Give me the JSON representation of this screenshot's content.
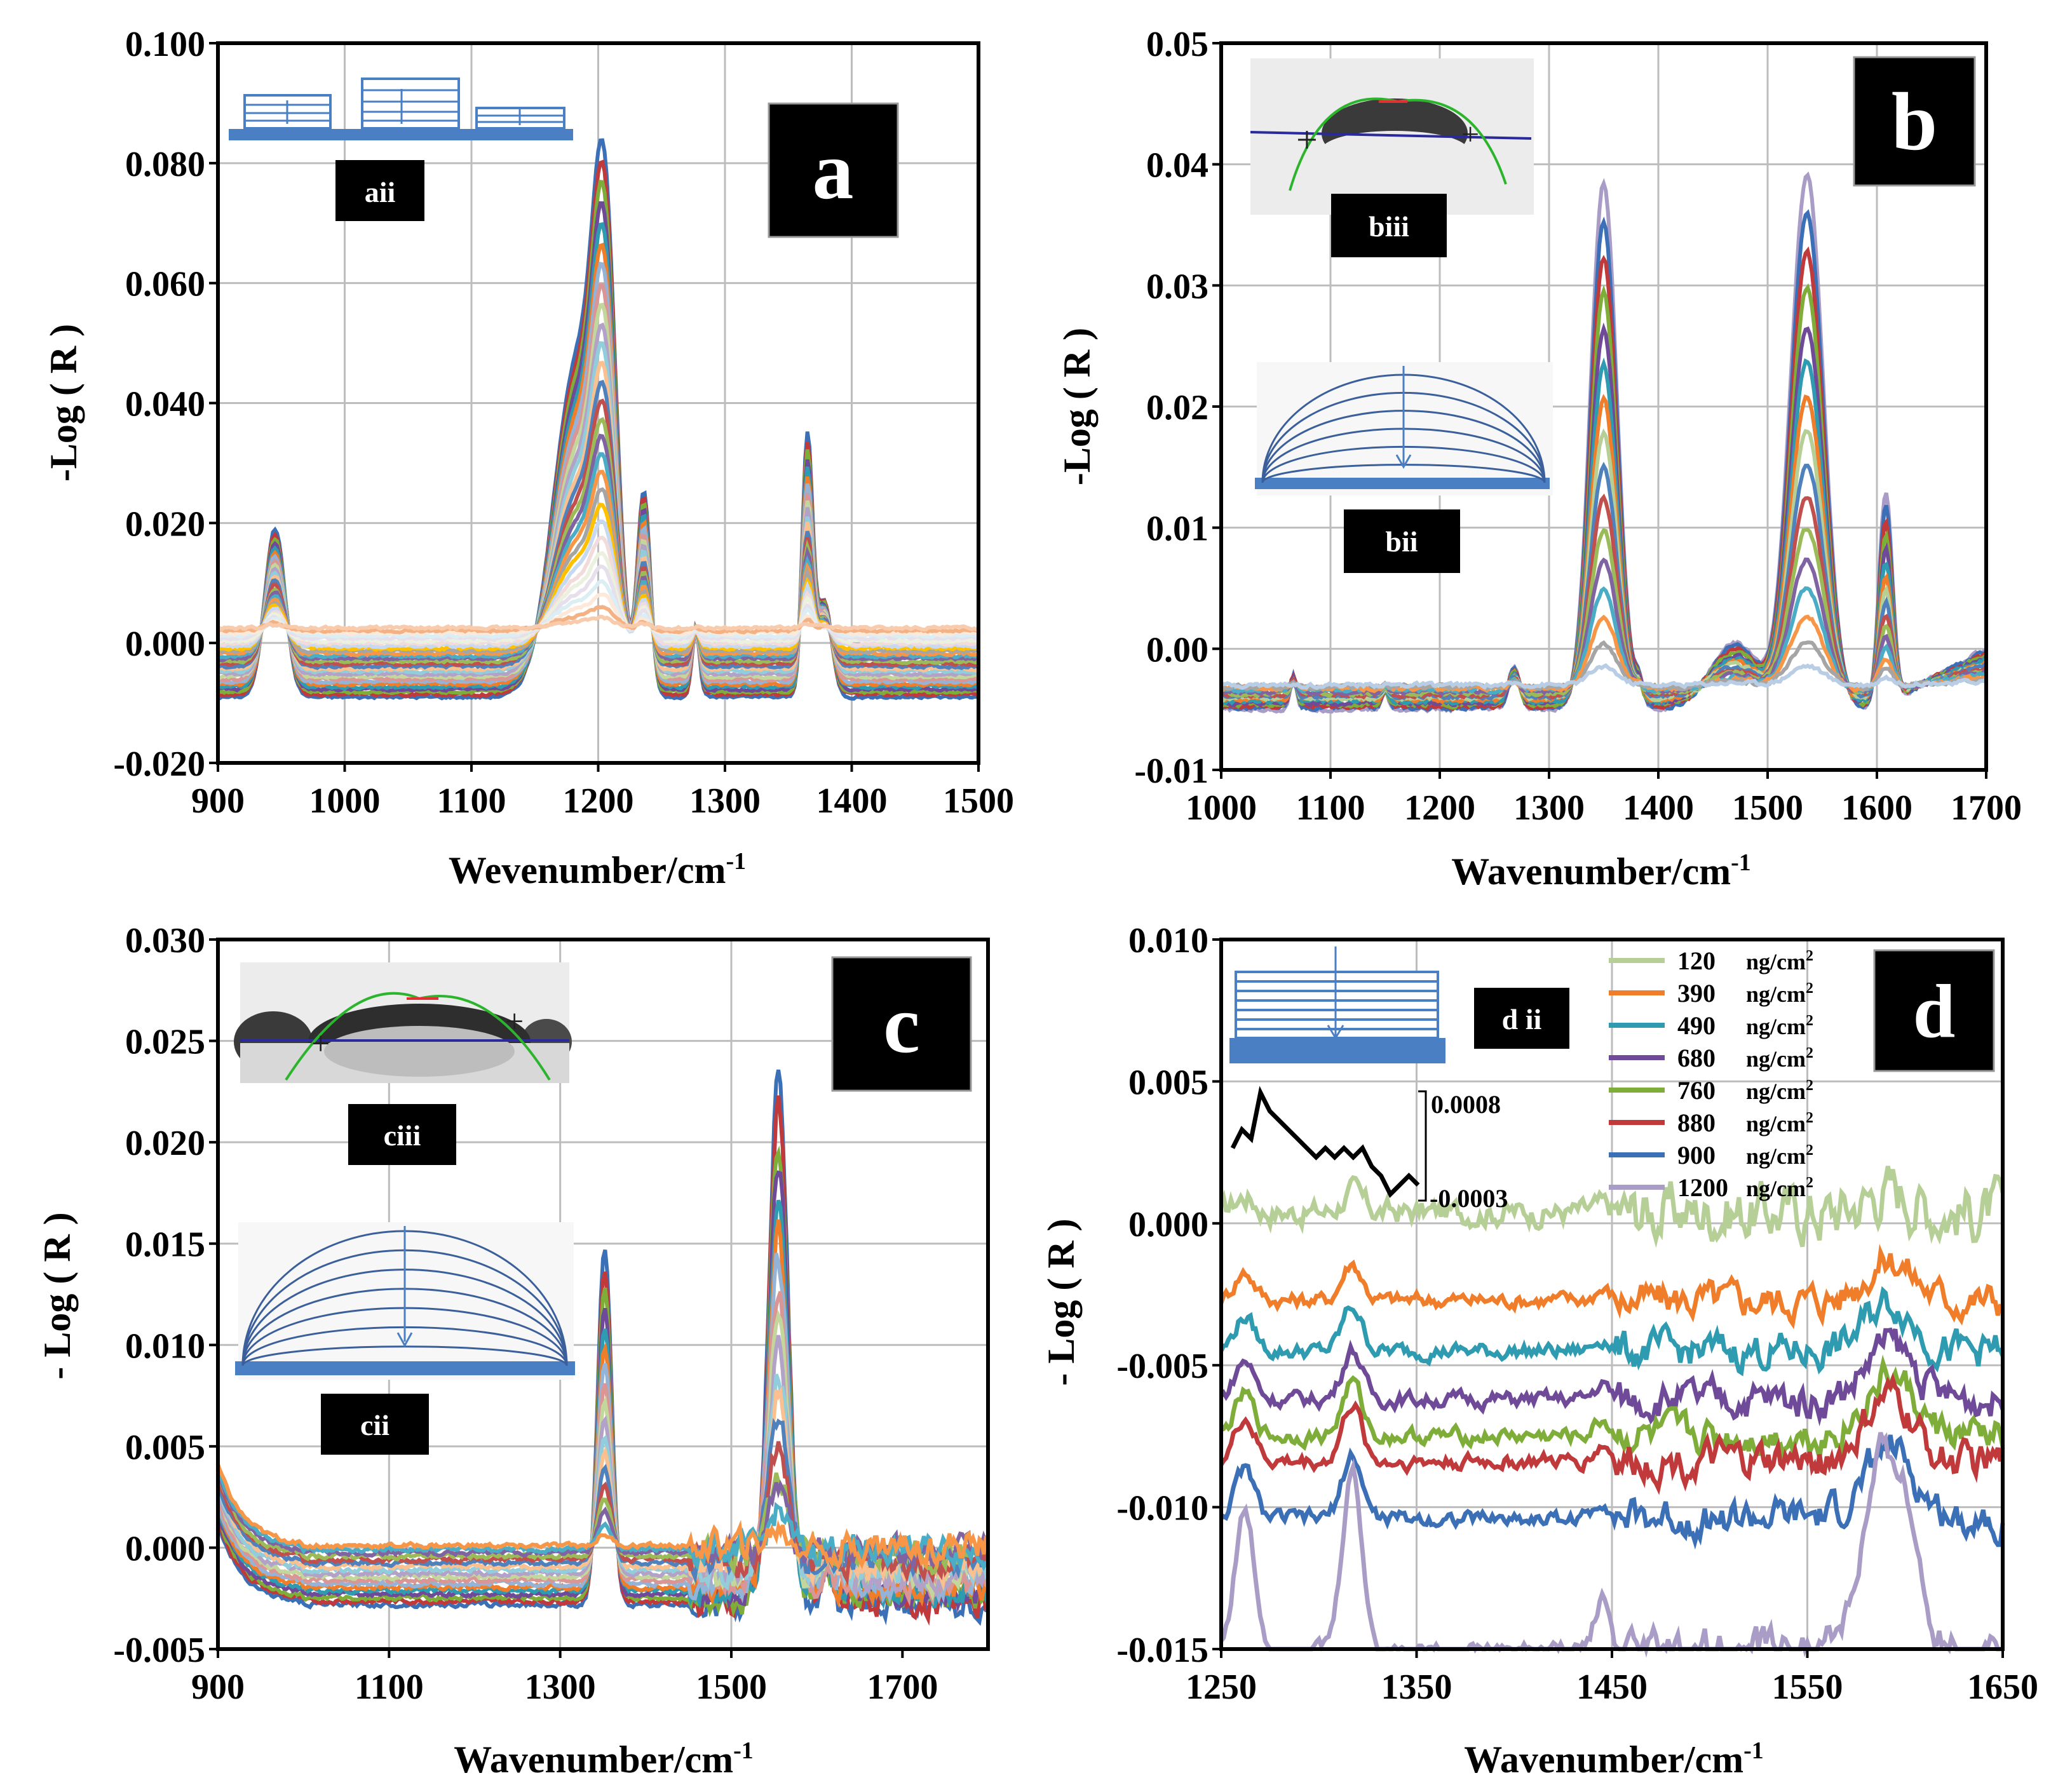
{
  "colors": {
    "c120": "#b5cf96",
    "c390": "#ef7d29",
    "c490": "#2f9bb0",
    "c680": "#6e4a98",
    "c760": "#7fad3a",
    "c880": "#c0393b",
    "c900": "#3b6fb6",
    "c1200": "#a99cc6",
    "frame": "#000000",
    "grid": "#bdbdbd",
    "schematic": "#4a7fc4",
    "label_bg": "#000000"
  },
  "chart_data": [
    {
      "id": "a",
      "type": "line",
      "panel_label": "a",
      "inset_labels": [
        "aii"
      ],
      "xlabel": "Wevenumber/cm",
      "xlabel_sup": "-1",
      "ylabel": "-Log ( R )",
      "xlim": [
        900,
        1500
      ],
      "ylim": [
        -0.02,
        0.1
      ],
      "xticks": [
        900,
        1000,
        1100,
        1200,
        1300,
        1400,
        1500
      ],
      "xtick_labels": [
        "900",
        "1000",
        "1100",
        "1200",
        "1300",
        "1400",
        "1500"
      ],
      "yticks": [
        -0.02,
        0.0,
        0.02,
        0.04,
        0.06,
        0.08,
        0.1
      ],
      "ytick_labels": [
        "-0.020",
        "0.000",
        "0.020",
        "0.040",
        "0.060",
        "0.080",
        "0.100"
      ],
      "series_count": 28,
      "peaks": [
        {
          "x": 945,
          "width": 8,
          "max": 0.028
        },
        {
          "x": 1183,
          "width": 18,
          "max": 0.055
        },
        {
          "x": 1205,
          "width": 9,
          "max": 0.065
        },
        {
          "x": 1236,
          "width": 5,
          "max": 0.0335
        },
        {
          "x": 1277,
          "width": 3,
          "max": 0.0115
        },
        {
          "x": 1365,
          "width": 4,
          "max": 0.0425
        },
        {
          "x": 1378,
          "width": 6,
          "max": 0.016
        }
      ],
      "baseline_max": -0.009,
      "baseline_min": 0.0025
    },
    {
      "id": "b",
      "type": "line",
      "panel_label": "b",
      "inset_labels": [
        "biii",
        "bii"
      ],
      "xlabel": "Wavenumber/cm",
      "xlabel_sup": "-1",
      "ylabel": "-Log ( R )",
      "xlim": [
        1000,
        1700
      ],
      "ylim": [
        -0.01,
        0.05
      ],
      "xticks": [
        1000,
        1100,
        1200,
        1300,
        1400,
        1500,
        1600,
        1700
      ],
      "xtick_labels": [
        "1000",
        "1100",
        "1200",
        "1300",
        "1400",
        "1500",
        "1600",
        "1700"
      ],
      "yticks": [
        -0.01,
        0.0,
        0.01,
        0.02,
        0.03,
        0.04,
        0.05
      ],
      "ytick_labels": [
        "-0.01",
        "0.00",
        "0.01",
        "0.02",
        "0.03",
        "0.04",
        "0.05"
      ],
      "series_count": 16,
      "peaks": [
        {
          "x": 1066,
          "width": 3,
          "max": 0.0028
        },
        {
          "x": 1150,
          "width": 3,
          "max": 0.0015
        },
        {
          "x": 1268,
          "width": 5,
          "max": 0.0035
        },
        {
          "x": 1350,
          "width": 12,
          "max": 0.0435
        },
        {
          "x": 1382,
          "width": 4,
          "max": 0.002
        },
        {
          "x": 1470,
          "width": 22,
          "max": 0.0055
        },
        {
          "x": 1536,
          "width": 15,
          "max": 0.044
        },
        {
          "x": 1608,
          "width": 6,
          "max": 0.0175
        }
      ],
      "baseline_max": -0.005,
      "baseline_min": -0.003
    },
    {
      "id": "c",
      "type": "line",
      "panel_label": "c",
      "inset_labels": [
        "ciii",
        "cii"
      ],
      "xlabel": "Wavenumber/cm",
      "xlabel_sup": "-1",
      "ylabel": "- Log ( R )",
      "xlim": [
        900,
        1800
      ],
      "ylim": [
        -0.005,
        0.03
      ],
      "xticks": [
        900,
        1100,
        1300,
        1500,
        1700
      ],
      "xtick_labels": [
        "900",
        "1100",
        "1300",
        "1500",
        "1700"
      ],
      "yticks": [
        -0.005,
        0.0,
        0.005,
        0.01,
        0.015,
        0.02,
        0.025,
        0.03
      ],
      "ytick_labels": [
        "-0.005",
        "0.000",
        "0.005",
        "0.010",
        "0.015",
        "0.020",
        "0.025",
        "0.030"
      ],
      "series_count": 18,
      "peaks": [
        {
          "x": 1352,
          "width": 8,
          "max": 0.0175
        },
        {
          "x": 1555,
          "width": 11,
          "max": 0.026
        },
        {
          "x": 1612,
          "width": 5,
          "max": 0.002
        }
      ],
      "baseline_max": -0.0028,
      "baseline_min": 0.0001
    },
    {
      "id": "d",
      "type": "line",
      "panel_label": "d",
      "inset_labels": [
        "d ii"
      ],
      "xlabel": "Wavenumber/cm",
      "xlabel_sup": "-1",
      "ylabel": "- Log ( R )",
      "xlim": [
        1250,
        1650
      ],
      "ylim": [
        -0.015,
        0.01
      ],
      "xticks": [
        1250,
        1350,
        1450,
        1550,
        1650
      ],
      "xtick_labels": [
        "1250",
        "1350",
        "1450",
        "1550",
        "1650"
      ],
      "yticks": [
        -0.015,
        -0.01,
        -0.005,
        0.0,
        0.005,
        0.01
      ],
      "ytick_labels": [
        "-0.015",
        "-0.010",
        "-0.005",
        "0.000",
        "0.005",
        "0.010"
      ],
      "legend_position": "top-right",
      "legend_unit": "ng/cm",
      "legend_unit_sup": "2",
      "series": [
        {
          "name": "120",
          "color_key": "c120",
          "offset": 0.0004,
          "scale": 0.25
        },
        {
          "name": "390",
          "color_key": "c390",
          "offset": -0.0027,
          "scale": 0.45
        },
        {
          "name": "490",
          "color_key": "c490",
          "offset": -0.0045,
          "scale": 0.55
        },
        {
          "name": "680",
          "color_key": "c680",
          "offset": -0.0062,
          "scale": 0.62
        },
        {
          "name": "760",
          "color_key": "c760",
          "offset": -0.0075,
          "scale": 0.66
        },
        {
          "name": "880",
          "color_key": "c880",
          "offset": -0.0084,
          "scale": 0.7
        },
        {
          "name": "900",
          "color_key": "c900",
          "offset": -0.0104,
          "scale": 0.78
        },
        {
          "name": "1200",
          "color_key": "c1200",
          "offset": -0.015,
          "scale": 1.4
        }
      ],
      "peaks": [
        {
          "x": 1262,
          "width": 5,
          "max": 0.004
        },
        {
          "x": 1317,
          "width": 5,
          "max": 0.0052
        },
        {
          "x": 1445,
          "width": 4,
          "max": 0.0015
        },
        {
          "x": 1592,
          "width": 12,
          "max": 0.0058
        }
      ],
      "noise_inset": {
        "upper_label": "0.0008",
        "lower_label": "-0.0003",
        "values": [
          0.0002,
          0.0004,
          0.0003,
          0.0008,
          0.0006,
          0.0005,
          0.0004,
          0.0003,
          0.0002,
          0.0001,
          0.0002,
          0.0001,
          0.0002,
          0.0001,
          0.0002,
          0.0,
          -0.0001,
          -0.0003,
          -0.0002,
          -0.0001,
          -0.0002
        ]
      }
    }
  ]
}
